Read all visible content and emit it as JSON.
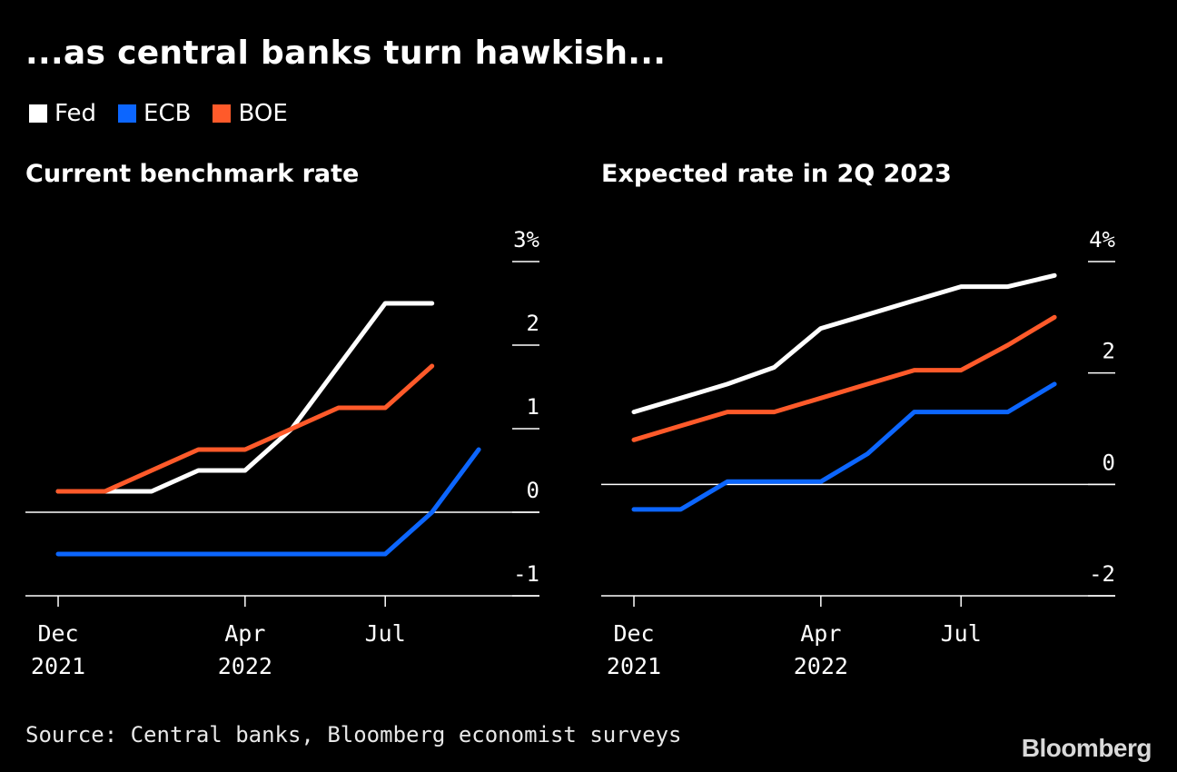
{
  "title": "...as central banks turn hawkish...",
  "legend": [
    {
      "label": "Fed",
      "color": "#ffffff"
    },
    {
      "label": "ECB",
      "color": "#0c66ff"
    },
    {
      "label": "BOE",
      "color": "#ff5a2a"
    }
  ],
  "chart_data": [
    {
      "type": "line",
      "title": "Current benchmark rate",
      "x": [
        0,
        1,
        2,
        3,
        4,
        5,
        6,
        7,
        8,
        9
      ],
      "x_ticks": [
        {
          "x": 0,
          "labels": [
            "Dec",
            "2021"
          ]
        },
        {
          "x": 4,
          "labels": [
            "Apr",
            "2022"
          ]
        },
        {
          "x": 7,
          "labels": [
            "Jul"
          ]
        }
      ],
      "xlim": [
        -0.7,
        10.3
      ],
      "ylim": [
        -1,
        3
      ],
      "y_ticks": [
        {
          "value": 3,
          "label": "3%"
        },
        {
          "value": 2,
          "label": "2"
        },
        {
          "value": 1,
          "label": "1"
        },
        {
          "value": 0,
          "label": "0"
        },
        {
          "value": -1,
          "label": "-1"
        }
      ],
      "zero_line": 0,
      "series": [
        {
          "name": "Fed",
          "color": "#ffffff",
          "values": [
            0.25,
            0.25,
            0.25,
            0.5,
            0.5,
            1.0,
            1.75,
            2.5,
            2.5,
            null
          ]
        },
        {
          "name": "ECB",
          "color": "#0c66ff",
          "values": [
            -0.5,
            -0.5,
            -0.5,
            -0.5,
            -0.5,
            -0.5,
            -0.5,
            -0.5,
            0.0,
            0.75
          ]
        },
        {
          "name": "BOE",
          "color": "#ff5a2a",
          "values": [
            0.25,
            0.25,
            0.5,
            0.75,
            0.75,
            1.0,
            1.25,
            1.25,
            1.75,
            null
          ]
        }
      ]
    },
    {
      "type": "line",
      "title": "Expected rate in 2Q 2023",
      "x": [
        0,
        1,
        2,
        3,
        4,
        5,
        6,
        7,
        8,
        9
      ],
      "x_ticks": [
        {
          "x": 0,
          "labels": [
            "Dec",
            "2021"
          ]
        },
        {
          "x": 4,
          "labels": [
            "Apr",
            "2022"
          ]
        },
        {
          "x": 7,
          "labels": [
            "Jul"
          ]
        }
      ],
      "xlim": [
        -0.7,
        10.3
      ],
      "ylim": [
        -2,
        4
      ],
      "y_ticks": [
        {
          "value": 4,
          "label": "4%"
        },
        {
          "value": 2,
          "label": "2"
        },
        {
          "value": 0,
          "label": "0"
        },
        {
          "value": -2,
          "label": "-2"
        }
      ],
      "zero_line": 0,
      "series": [
        {
          "name": "Fed",
          "color": "#ffffff",
          "values": [
            1.3,
            1.55,
            1.8,
            2.1,
            2.8,
            3.05,
            3.3,
            3.55,
            3.55,
            3.75
          ]
        },
        {
          "name": "ECB",
          "color": "#0c66ff",
          "values": [
            -0.45,
            -0.45,
            0.05,
            0.05,
            0.05,
            0.55,
            1.3,
            1.3,
            1.3,
            1.8
          ]
        },
        {
          "name": "BOE",
          "color": "#ff5a2a",
          "values": [
            0.8,
            1.05,
            1.3,
            1.3,
            1.55,
            1.8,
            2.05,
            2.05,
            2.5,
            3.0
          ]
        }
      ]
    }
  ],
  "source": "Source: Central banks, Bloomberg economist surveys",
  "brand": "Bloomberg"
}
